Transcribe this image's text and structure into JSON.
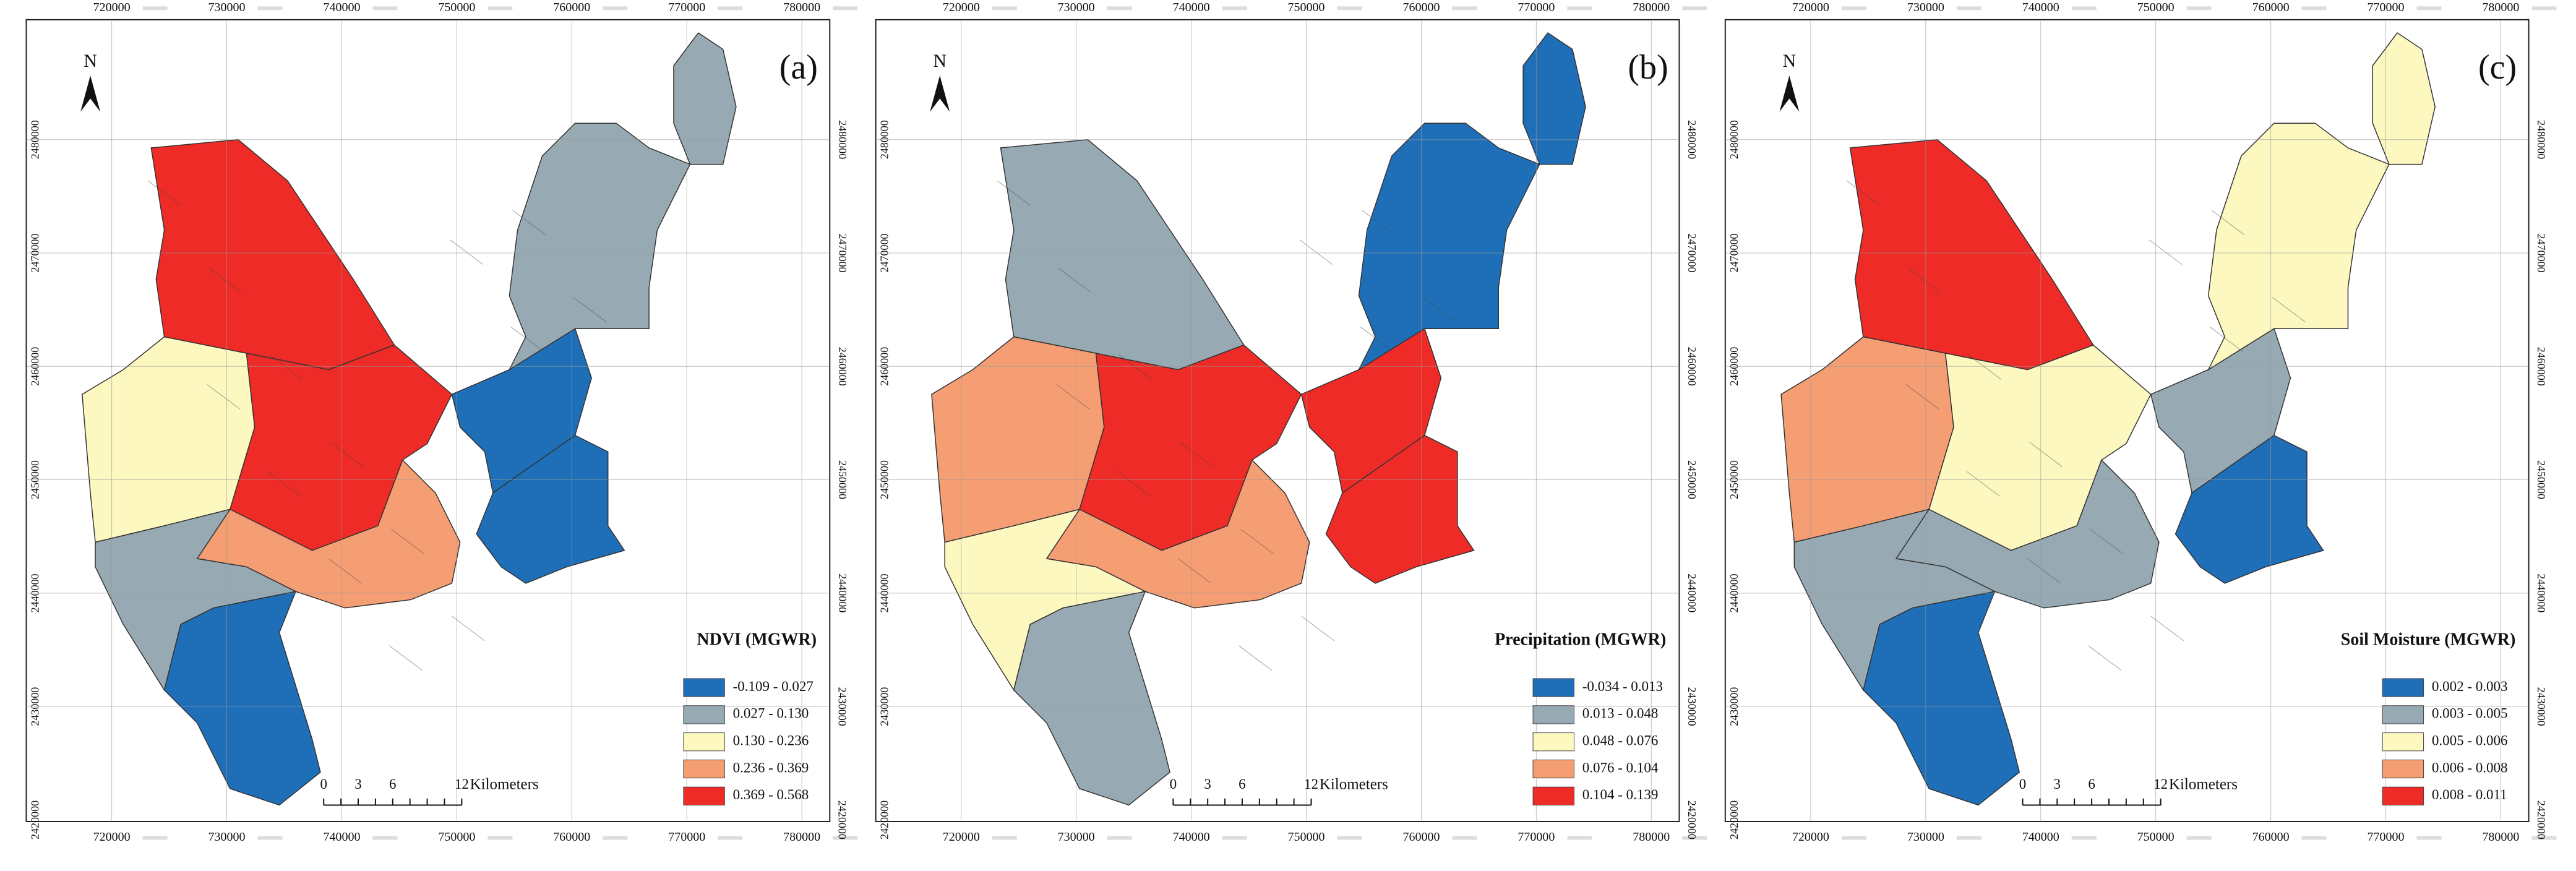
{
  "axes": {
    "x_ticks": [
      "720000",
      "730000",
      "740000",
      "750000",
      "760000",
      "770000",
      "780000"
    ],
    "y_ticks": [
      "2420000",
      "2430000",
      "2440000",
      "2450000",
      "2460000",
      "2470000",
      "2480000"
    ]
  },
  "north": "N",
  "scale_bar": {
    "ticks": [
      "0",
      "3",
      "6",
      "12"
    ],
    "unit": "Kilometers"
  },
  "panels": [
    {
      "label": "(a)",
      "legend_title": "NDVI (MGWR)",
      "legend": [
        {
          "label": "-0.109 - 0.027",
          "color": "#1f6fb8"
        },
        {
          "label": "0.027 - 0.130",
          "color": "#97aab3"
        },
        {
          "label": "0.130 - 0.236",
          "color": "#fdf7c0"
        },
        {
          "label": "0.236 - 0.369",
          "color": "#f59e74"
        },
        {
          "label": "0.369 - 0.568",
          "color": "#ee2b27"
        }
      ]
    },
    {
      "label": "(b)",
      "legend_title": "Precipitation (MGWR)",
      "legend": [
        {
          "label": "-0.034 - 0.013",
          "color": "#1f6fb8"
        },
        {
          "label": "0.013 - 0.048",
          "color": "#97aab3"
        },
        {
          "label": "0.048 - 0.076",
          "color": "#fdf7c0"
        },
        {
          "label": "0.076 - 0.104",
          "color": "#f59e74"
        },
        {
          "label": "0.104 - 0.139",
          "color": "#ee2b27"
        }
      ]
    },
    {
      "label": "(c)",
      "legend_title": "Soil Moisture (MGWR)",
      "legend": [
        {
          "label": "0.002 - 0.003",
          "color": "#1f6fb8"
        },
        {
          "label": "0.003 - 0.005",
          "color": "#97aab3"
        },
        {
          "label": "0.005 - 0.006",
          "color": "#fdf7c0"
        },
        {
          "label": "0.006 - 0.008",
          "color": "#f59e74"
        },
        {
          "label": "0.008 - 0.011",
          "color": "#ee2b27"
        }
      ]
    }
  ]
}
